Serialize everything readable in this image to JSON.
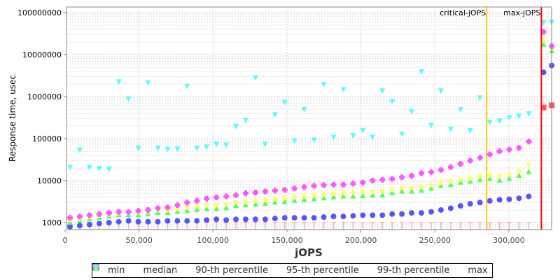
{
  "chart_data": {
    "type": "scatter",
    "title": "",
    "xlabel": "jOPS",
    "ylabel": "Response time, usec",
    "yscale": "log",
    "xlim": [
      0,
      329000
    ],
    "ylim": [
      680,
      140000000
    ],
    "x_ticks": [
      "0",
      "50,000",
      "100,000",
      "150,000",
      "200,000",
      "250,000",
      "300,000"
    ],
    "x_tick_values": [
      0,
      50000,
      100000,
      150000,
      200000,
      250000,
      300000
    ],
    "y_ticks": [
      "1000",
      "10000",
      "100000",
      "1000000",
      "10000000",
      "100000000"
    ],
    "y_tick_values": [
      1000,
      10000,
      100000,
      1000000,
      10000000,
      100000000
    ],
    "grid": true,
    "legend_position": "bottom",
    "annotations": [
      {
        "label": "critical-jOPS",
        "x": 285000,
        "color": "#ffc800"
      },
      {
        "label": "max-jOPS",
        "x": 322000,
        "color": "#ff0000"
      }
    ],
    "x": [
      3300,
      9900,
      16500,
      23100,
      29700,
      36300,
      42900,
      49500,
      56100,
      62700,
      69300,
      75900,
      82500,
      89100,
      95700,
      102300,
      108900,
      115500,
      122100,
      128700,
      135300,
      141900,
      148500,
      155100,
      161700,
      168300,
      174900,
      181500,
      188100,
      194700,
      201300,
      207900,
      214500,
      221100,
      227700,
      234300,
      240900,
      247500,
      254100,
      260700,
      267300,
      273900,
      280500,
      287100,
      293700,
      300300,
      306900,
      313500,
      323500,
      329000
    ],
    "series": [
      {
        "name": "min",
        "color": "#ff5555",
        "marker": "square",
        "values": [
          1000,
          1000,
          1000,
          1000,
          1000,
          1000,
          1000,
          1000,
          1000,
          1000,
          1000,
          1000,
          1000,
          1000,
          1000,
          1000,
          1000,
          1000,
          1000,
          1000,
          1000,
          1000,
          1000,
          1000,
          1000,
          1000,
          1000,
          1000,
          1000,
          1000,
          1000,
          1000,
          1000,
          1000,
          1000,
          1000,
          1000,
          1000,
          1000,
          1000,
          1000,
          1000,
          1000,
          1000,
          1000,
          1000,
          1000,
          1000,
          550000,
          620000
        ]
      },
      {
        "name": "median",
        "color": "#5555ff",
        "marker": "circle",
        "values": [
          800,
          850,
          900,
          950,
          1000,
          1050,
          1100,
          1050,
          1050,
          1050,
          1100,
          1100,
          1100,
          1100,
          1150,
          1200,
          1150,
          1200,
          1200,
          1200,
          1200,
          1250,
          1300,
          1300,
          1300,
          1300,
          1350,
          1400,
          1400,
          1450,
          1500,
          1500,
          1500,
          1600,
          1600,
          1700,
          1700,
          1800,
          2000,
          2200,
          2500,
          2800,
          3000,
          3300,
          3500,
          3600,
          3800,
          4200,
          3800000,
          5500000
        ]
      },
      {
        "name": "90-th percentile",
        "color": "#55ff55",
        "marker": "triangle-up",
        "values": [
          1000,
          1100,
          1200,
          1300,
          1400,
          1500,
          1500,
          1500,
          1600,
          1700,
          1700,
          1800,
          1900,
          2000,
          2100,
          2100,
          2200,
          2500,
          2600,
          2700,
          2800,
          3000,
          3100,
          3300,
          3500,
          3600,
          3800,
          4000,
          4200,
          4200,
          4300,
          4400,
          4500,
          5000,
          5500,
          5500,
          5800,
          6500,
          7500,
          8000,
          9000,
          9500,
          10500,
          11000,
          10000,
          11000,
          13000,
          16000,
          17000000,
          12000000
        ]
      },
      {
        "name": "95-th percentile",
        "color": "#ffff55",
        "marker": "diamond",
        "values": [
          1150,
          1250,
          1350,
          1450,
          1550,
          1700,
          1750,
          1750,
          1850,
          2000,
          2000,
          2150,
          2300,
          2500,
          2600,
          2700,
          2800,
          3100,
          3200,
          3300,
          3500,
          3700,
          3900,
          4100,
          4300,
          4500,
          4700,
          5000,
          5200,
          5200,
          5400,
          5500,
          5700,
          6200,
          6800,
          6900,
          7200,
          8000,
          9000,
          9800,
          10800,
          11500,
          12500,
          13500,
          13000,
          14500,
          17000,
          24000,
          22000000,
          14000000
        ]
      },
      {
        "name": "99-th percentile",
        "color": "#ff55ff",
        "marker": "square-plus",
        "values": [
          1300,
          1400,
          1500,
          1600,
          1700,
          1800,
          1800,
          1900,
          2000,
          2200,
          2300,
          2600,
          3000,
          3300,
          3700,
          4000,
          4200,
          4500,
          5000,
          5200,
          5500,
          5800,
          6000,
          6500,
          7000,
          7500,
          7800,
          8000,
          8000,
          8500,
          9000,
          10000,
          10500,
          11000,
          12000,
          13000,
          15000,
          16000,
          18000,
          21000,
          25000,
          30000,
          35000,
          42000,
          50000,
          55000,
          60000,
          85000,
          35000000,
          16000000
        ]
      },
      {
        "name": "max",
        "color": "#55ffff",
        "marker": "triangle-down",
        "values": [
          21000,
          55000,
          21000,
          20000,
          19000,
          2300000,
          900000,
          60000,
          2200000,
          60000,
          57000,
          58000,
          1800000,
          60000,
          65000,
          75000,
          72000,
          200000,
          280000,
          2900000,
          75000,
          380000,
          750000,
          90000,
          500000,
          95000,
          2000000,
          110000,
          1500000,
          120000,
          160000,
          110000,
          1400000,
          780000,
          130000,
          450000,
          4000000,
          210000,
          1400000,
          170000,
          500000,
          160000,
          950000,
          250000,
          270000,
          320000,
          350000,
          400000,
          60000000,
          60000000
        ]
      }
    ]
  }
}
